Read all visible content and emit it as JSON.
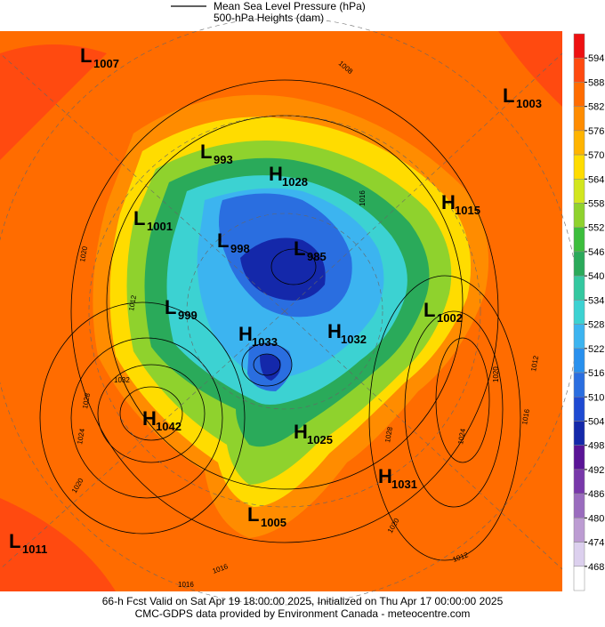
{
  "legend": {
    "line_label": "Mean Sea Level Pressure (hPa)",
    "fill_label": "500-hPa Heights (dam)"
  },
  "centers": [
    {
      "letter": "L",
      "value": "1007"
    },
    {
      "letter": "L",
      "value": "1003"
    },
    {
      "letter": "L",
      "value": "993"
    },
    {
      "letter": "H",
      "value": "1028"
    },
    {
      "letter": "H",
      "value": "1015"
    },
    {
      "letter": "L",
      "value": "1001"
    },
    {
      "letter": "L",
      "value": "998"
    },
    {
      "letter": "L",
      "value": "985"
    },
    {
      "letter": "L",
      "value": "999"
    },
    {
      "letter": "L",
      "value": "1002"
    },
    {
      "letter": "H",
      "value": "1033"
    },
    {
      "letter": "H",
      "value": "1032"
    },
    {
      "letter": "H",
      "value": "1042"
    },
    {
      "letter": "H",
      "value": "1025"
    },
    {
      "letter": "H",
      "value": "1031"
    },
    {
      "letter": "L",
      "value": "1005"
    },
    {
      "letter": "L",
      "value": "1011"
    }
  ],
  "contour_labels": [
    "1008",
    "1016",
    "1020",
    "1012",
    "1032",
    "1028",
    "1024",
    "1020",
    "1016",
    "1016",
    "1020",
    "1028",
    "1024",
    "1020",
    "1012",
    "1016",
    "1012"
  ],
  "colorbar": {
    "ticks": [
      594,
      588,
      582,
      576,
      570,
      564,
      558,
      552,
      546,
      540,
      534,
      528,
      522,
      516,
      510,
      504,
      498,
      492,
      486,
      480,
      474,
      468
    ],
    "colors": [
      "#ee1111",
      "#ff4a10",
      "#ff6c00",
      "#ff8c00",
      "#ffb400",
      "#ffdc00",
      "#d2e61e",
      "#8fd22d",
      "#3cbe3c",
      "#2aaa5a",
      "#34c8a0",
      "#3cd2d2",
      "#3cb4f0",
      "#2890ee",
      "#2a6ee0",
      "#1e4ad2",
      "#1428aa",
      "#5a1496",
      "#7838aa",
      "#9a6cbe",
      "#bc9cd2",
      "#dcd0ee",
      "#ffffff"
    ]
  },
  "footer": [
    "66-h Fcst Valid on Sat Apr 19 18:00:00 2025, Initialized on Thu Apr 17 00:00:00 2025",
    "CMC-GDPS data provided by Environment Canada - meteocentre.com"
  ]
}
